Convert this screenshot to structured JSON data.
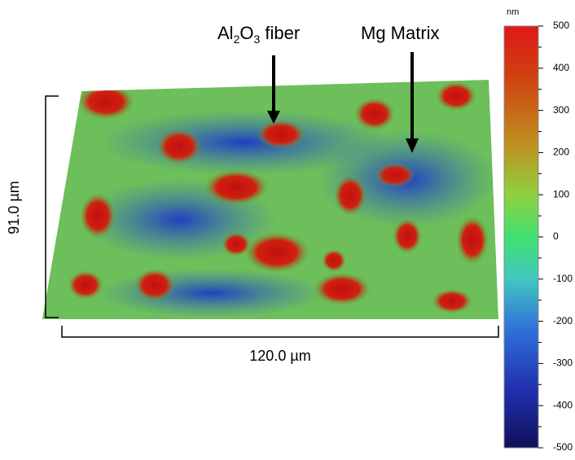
{
  "annotations": {
    "fiber_label_parts": [
      "Al",
      "2",
      "O",
      "3",
      " fiber"
    ],
    "matrix_label": "Mg Matrix",
    "height_label": "91.0 µm",
    "width_label": "120.0 µm"
  },
  "colorbar": {
    "unit": "nm",
    "lim": [
      -500,
      500
    ],
    "ticks": [
      500,
      400,
      300,
      200,
      100,
      0,
      -100,
      -200,
      -300,
      -400,
      -500
    ]
  }
}
